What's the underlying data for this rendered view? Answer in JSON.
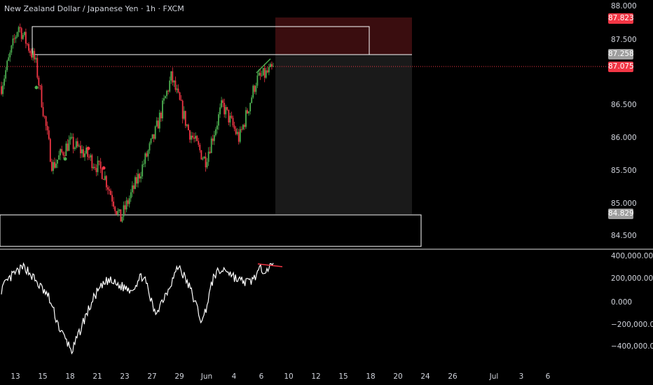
{
  "header": {
    "title": "New Zealand Dollar / Japanese Yen · 1h · FXCM"
  },
  "colors": {
    "background": "#000000",
    "up_candle": "#4caf50",
    "down_candle": "#f23645",
    "current_price_line": "#f23645",
    "target_zone": "#3a0d0f",
    "forecast_zone": "#1c1c1c",
    "zone_border": "#ffffff",
    "oscillator_line": "#ffffff",
    "divergence_line": "#f23645"
  },
  "price_axis": {
    "ticks": [
      "88.000",
      "87.500",
      "86.500",
      "86.000",
      "85.500",
      "85.000",
      "84.500"
    ],
    "labels": {
      "stop": "87.823",
      "entry_top": "87.258",
      "current": "87.075",
      "target": "84.829"
    }
  },
  "oscillator_axis": {
    "ticks": [
      "400,000.000",
      "200,000.000",
      "0.000",
      "−200,000.000",
      "−400,000.000"
    ]
  },
  "time_axis": {
    "labels": [
      "13",
      "15",
      "18",
      "21",
      "23",
      "27",
      "29",
      "Jun",
      "4",
      "6",
      "10",
      "12",
      "15",
      "18",
      "20",
      "24",
      "26",
      "Jul",
      "3",
      "6"
    ]
  },
  "chart_data": {
    "type": "candlestick",
    "symbol": "NZDJPY",
    "interval": "1h",
    "ylim": [
      84.3,
      88.1
    ],
    "price_path_approx": [
      {
        "x": "13",
        "close": 86.8
      },
      {
        "x": "14",
        "close": 87.78
      },
      {
        "x": "15",
        "close": 87.2
      },
      {
        "x": "16",
        "close": 85.5
      },
      {
        "x": "17",
        "close": 85.9
      },
      {
        "x": "18",
        "close": 85.7
      },
      {
        "x": "21",
        "close": 85.4
      },
      {
        "x": "22",
        "close": 84.65
      },
      {
        "x": "23",
        "close": 85.3
      },
      {
        "x": "27",
        "close": 86.0
      },
      {
        "x": "28",
        "close": 86.95
      },
      {
        "x": "29",
        "close": 86.1
      },
      {
        "x": "Jun",
        "close": 85.6
      },
      {
        "x": "4",
        "close": 86.5
      },
      {
        "x": "5",
        "close": 85.95
      },
      {
        "x": "6",
        "close": 86.9
      },
      {
        "x": "7",
        "close": 87.075
      }
    ],
    "zones": {
      "stop_level": 87.823,
      "entry_level": 87.258,
      "target_level": 84.829,
      "supply_zone": [
        87.258,
        87.72
      ],
      "demand_zone": [
        84.3,
        84.829
      ]
    },
    "oscillator": {
      "ylim": [
        -450000,
        420000
      ],
      "values": [
        120000,
        250000,
        320000,
        180000,
        50000,
        -250000,
        -430000,
        -150000,
        80000,
        200000,
        150000,
        120000,
        250000,
        -100000,
        100000,
        330000,
        120000,
        -180000,
        250000,
        300000,
        200000,
        180000,
        300000,
        320000
      ]
    }
  }
}
